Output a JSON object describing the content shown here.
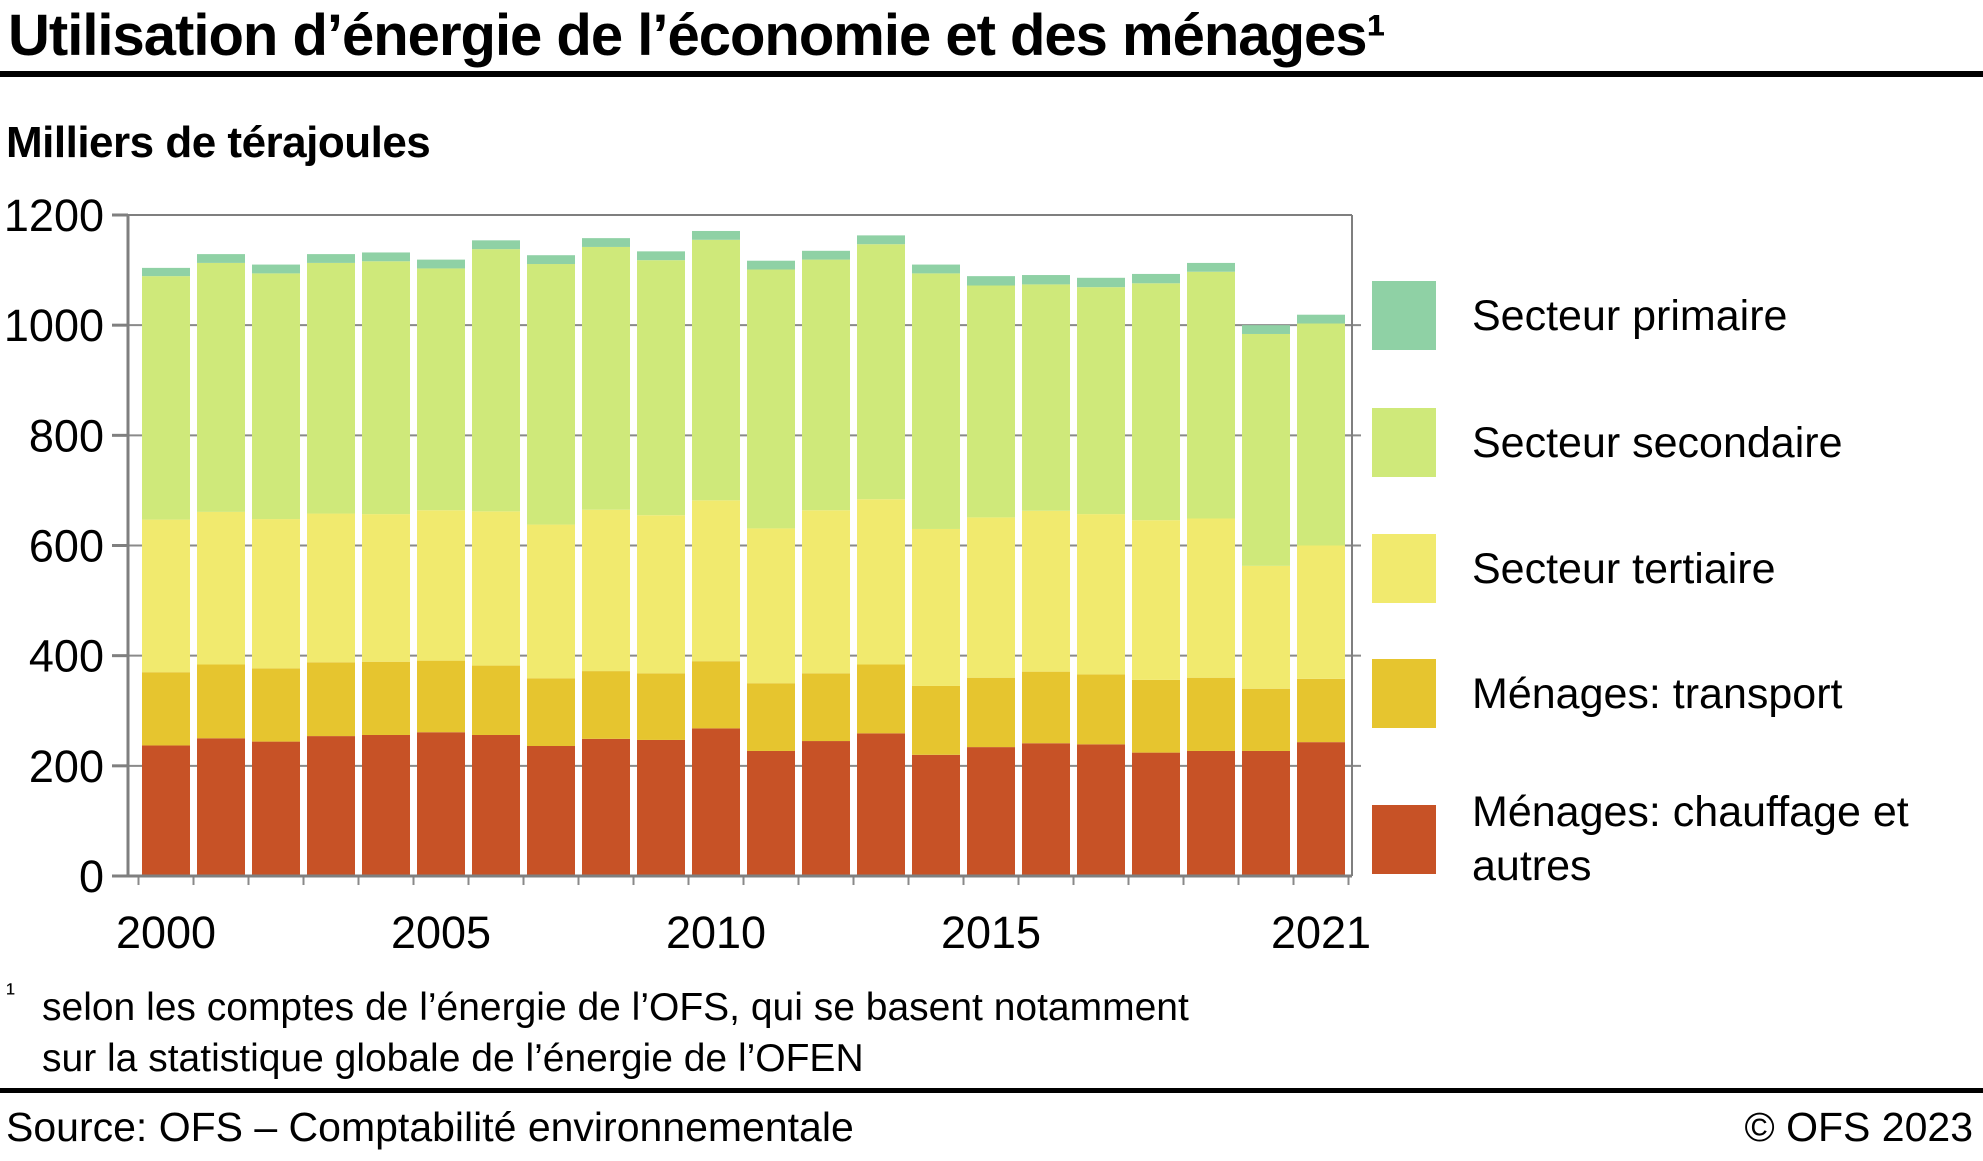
{
  "title": "Utilisation d’énergie de l’économie et des ménages¹",
  "subtitle": "Milliers de térajoules",
  "legend": {
    "items": [
      {
        "label": "Secteur primaire",
        "color": "#8FD1A5"
      },
      {
        "label": "Secteur secondaire",
        "color": "#CFE97A"
      },
      {
        "label": "Secteur tertiaire",
        "color": "#F1EA6E"
      },
      {
        "label": "Ménages: transport",
        "color": "#E6C52F"
      },
      {
        "label": "Ménages: chauffage et autres",
        "color": "#C75226"
      }
    ]
  },
  "footnote": {
    "marker": "¹",
    "lines": [
      "selon les comptes de l’énergie de l’OFS, qui se basent notamment",
      "sur la statistique globale de l’énergie de l’OFEN"
    ]
  },
  "footer": {
    "source": "Source: OFS – Comptabilité environnementale",
    "copyright": "© OFS 2023"
  },
  "colors": {
    "axis": "#7f7f7f",
    "grid": "#8a8a8a",
    "text": "#000000",
    "background": "#ffffff"
  },
  "chart_data": {
    "type": "bar",
    "stacked": true,
    "title": "Utilisation d’énergie de l’économie et des ménages",
    "ylabel": "Milliers de térajoules",
    "xlabel": "",
    "ylim": [
      0,
      1200
    ],
    "y_ticks": [
      0,
      200,
      400,
      600,
      800,
      1000,
      1200
    ],
    "x": [
      2000,
      2001,
      2002,
      2003,
      2004,
      2005,
      2006,
      2007,
      2008,
      2009,
      2010,
      2011,
      2012,
      2013,
      2014,
      2015,
      2016,
      2017,
      2018,
      2019,
      2020,
      2021
    ],
    "x_axis_tick_years": [
      2000,
      2005,
      2010,
      2015,
      2021
    ],
    "legend_position": "right",
    "grid": true,
    "series": [
      {
        "name": "Ménages: chauffage et autres",
        "color": "#C75226",
        "values": [
          237,
          250,
          244,
          254,
          256,
          261,
          256,
          236,
          249,
          247,
          268,
          227,
          245,
          259,
          220,
          234,
          241,
          239,
          224,
          227,
          227,
          243
        ]
      },
      {
        "name": "Ménages: transport",
        "color": "#E6C52F",
        "values": [
          133,
          134,
          133,
          134,
          133,
          130,
          126,
          123,
          123,
          121,
          122,
          123,
          123,
          125,
          125,
          126,
          130,
          127,
          132,
          133,
          113,
          115
        ]
      },
      {
        "name": "Secteur tertiaire",
        "color": "#F1EA6E",
        "values": [
          277,
          277,
          271,
          270,
          268,
          273,
          280,
          279,
          293,
          287,
          292,
          281,
          296,
          300,
          285,
          291,
          292,
          291,
          290,
          289,
          223,
          242
        ]
      },
      {
        "name": "Secteur secondaire",
        "color": "#CFE97A",
        "values": [
          442,
          452,
          446,
          455,
          459,
          439,
          476,
          473,
          477,
          463,
          473,
          470,
          455,
          463,
          464,
          421,
          411,
          412,
          430,
          448,
          421,
          403
        ]
      },
      {
        "name": "Secteur primaire",
        "color": "#8FD1A5",
        "values": [
          15,
          16,
          16,
          16,
          16,
          16,
          16,
          16,
          16,
          16,
          16,
          16,
          16,
          16,
          16,
          17,
          17,
          17,
          17,
          16,
          16,
          16
        ]
      }
    ],
    "totals": [
      1104,
      1129,
      1110,
      1129,
      1132,
      1119,
      1154,
      1127,
      1158,
      1134,
      1171,
      1117,
      1135,
      1163,
      1110,
      1089,
      1091,
      1086,
      1093,
      1113,
      1000,
      1019
    ]
  }
}
